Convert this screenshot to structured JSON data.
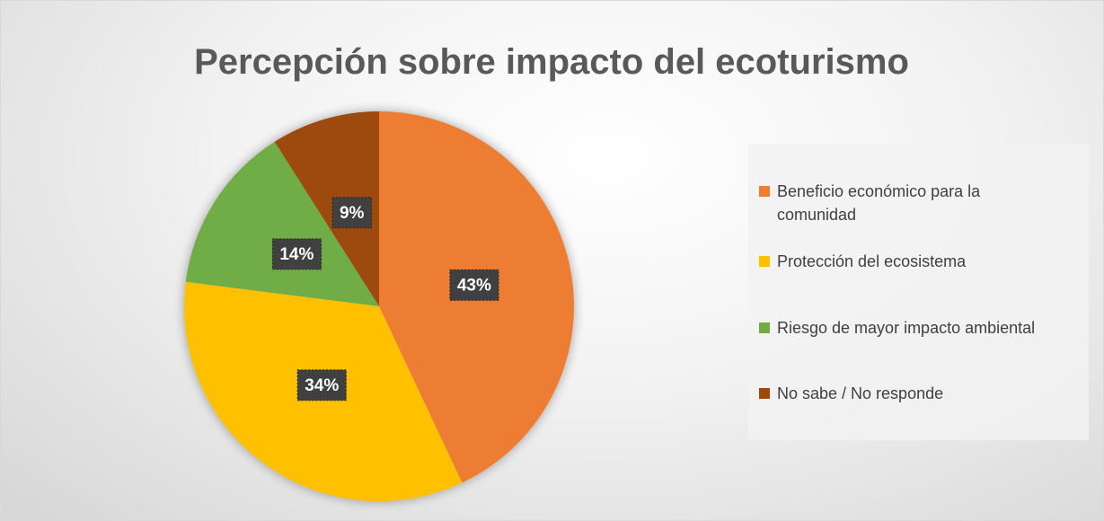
{
  "chart_data": {
    "type": "pie",
    "title": "Percepción sobre impacto del ecoturismo",
    "categories": [
      "Beneficio económico para la comunidad",
      "Protección del ecosistema",
      "Riesgo de mayor impacto ambiental",
      "No sabe / No responde"
    ],
    "values": [
      43,
      34,
      14,
      9
    ],
    "value_labels": [
      "43%",
      "34%",
      "14%",
      "9%"
    ],
    "colors": [
      "#ED7D31",
      "#FFC000",
      "#70AD47",
      "#9E480E"
    ],
    "legend": "right"
  }
}
